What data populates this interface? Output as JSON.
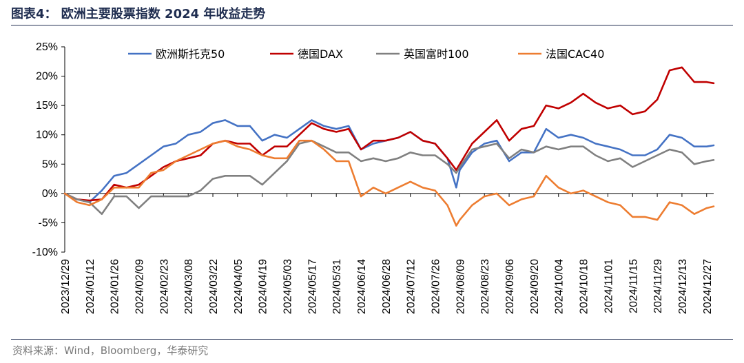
{
  "figure": {
    "title": "图表4：  欧洲主要股票指数 2024 年收益走势",
    "source": "资料来源：Wind，Bloomberg，华泰研究"
  },
  "chart_data": {
    "type": "line",
    "title": "",
    "xlabel": "",
    "ylabel": "",
    "ylim": [
      -0.1,
      0.25
    ],
    "y_ticks": [
      -0.1,
      -0.05,
      0,
      0.05,
      0.1,
      0.15,
      0.2,
      0.25
    ],
    "y_tick_labels": [
      "-10%",
      "-5%",
      "0%",
      "5%",
      "10%",
      "15%",
      "20%",
      "25%"
    ],
    "x_tick_labels": [
      "2023/12/29",
      "2024/01/12",
      "2024/01/26",
      "2024/02/09",
      "2024/02/23",
      "2024/03/08",
      "2024/03/22",
      "2024/04/05",
      "2024/04/19",
      "2024/05/03",
      "2024/05/17",
      "2024/05/31",
      "2024/06/14",
      "2024/06/28",
      "2024/07/12",
      "2024/07/26",
      "2024/08/09",
      "2024/08/23",
      "2024/09/06",
      "2024/09/20",
      "2024/10/04",
      "2024/10/18",
      "2024/11/01",
      "2024/11/15",
      "2024/11/29",
      "2024/12/13",
      "2024/12/27"
    ],
    "x_range": [
      "2023/12/29",
      "2024/12/31"
    ],
    "grid": false,
    "legend_position": "top",
    "series": [
      {
        "name": "欧洲斯托克50",
        "color": "#4472c4",
        "points": [
          [
            "2023/12/29",
            0
          ],
          [
            "2024/01/05",
            -0.01
          ],
          [
            "2024/01/12",
            -0.015
          ],
          [
            "2024/01/19",
            0.005
          ],
          [
            "2024/01/26",
            0.03
          ],
          [
            "2024/02/02",
            0.035
          ],
          [
            "2024/02/09",
            0.05
          ],
          [
            "2024/02/16",
            0.065
          ],
          [
            "2024/02/23",
            0.08
          ],
          [
            "2024/03/01",
            0.085
          ],
          [
            "2024/03/08",
            0.1
          ],
          [
            "2024/03/15",
            0.105
          ],
          [
            "2024/03/22",
            0.12
          ],
          [
            "2024/03/29",
            0.125
          ],
          [
            "2024/04/05",
            0.115
          ],
          [
            "2024/04/12",
            0.115
          ],
          [
            "2024/04/19",
            0.09
          ],
          [
            "2024/04/26",
            0.1
          ],
          [
            "2024/05/03",
            0.095
          ],
          [
            "2024/05/10",
            0.11
          ],
          [
            "2024/05/17",
            0.125
          ],
          [
            "2024/05/24",
            0.115
          ],
          [
            "2024/05/31",
            0.11
          ],
          [
            "2024/06/07",
            0.115
          ],
          [
            "2024/06/14",
            0.075
          ],
          [
            "2024/06/21",
            0.085
          ],
          [
            "2024/06/28",
            0.09
          ],
          [
            "2024/07/05",
            0.095
          ],
          [
            "2024/07/12",
            0.105
          ],
          [
            "2024/07/19",
            0.09
          ],
          [
            "2024/07/26",
            0.085
          ],
          [
            "2024/08/02",
            0.06
          ],
          [
            "2024/08/07",
            0.01
          ],
          [
            "2024/08/09",
            0.04
          ],
          [
            "2024/08/16",
            0.07
          ],
          [
            "2024/08/23",
            0.085
          ],
          [
            "2024/08/30",
            0.09
          ],
          [
            "2024/09/06",
            0.055
          ],
          [
            "2024/09/13",
            0.07
          ],
          [
            "2024/09/20",
            0.07
          ],
          [
            "2024/09/27",
            0.11
          ],
          [
            "2024/10/04",
            0.095
          ],
          [
            "2024/10/11",
            0.1
          ],
          [
            "2024/10/18",
            0.095
          ],
          [
            "2024/10/25",
            0.085
          ],
          [
            "2024/11/01",
            0.08
          ],
          [
            "2024/11/08",
            0.075
          ],
          [
            "2024/11/15",
            0.065
          ],
          [
            "2024/11/22",
            0.065
          ],
          [
            "2024/11/29",
            0.075
          ],
          [
            "2024/12/06",
            0.1
          ],
          [
            "2024/12/13",
            0.095
          ],
          [
            "2024/12/20",
            0.08
          ],
          [
            "2024/12/27",
            0.08
          ],
          [
            "2024/12/31",
            0.082
          ]
        ]
      },
      {
        "name": "德国DAX",
        "color": "#c00000",
        "points": [
          [
            "2023/12/29",
            0
          ],
          [
            "2024/01/05",
            -0.01
          ],
          [
            "2024/01/12",
            -0.012
          ],
          [
            "2024/01/19",
            -0.01
          ],
          [
            "2024/01/26",
            0.015
          ],
          [
            "2024/02/02",
            0.01
          ],
          [
            "2024/02/09",
            0.015
          ],
          [
            "2024/02/16",
            0.03
          ],
          [
            "2024/02/23",
            0.045
          ],
          [
            "2024/03/01",
            0.055
          ],
          [
            "2024/03/08",
            0.06
          ],
          [
            "2024/03/15",
            0.065
          ],
          [
            "2024/03/22",
            0.085
          ],
          [
            "2024/03/29",
            0.09
          ],
          [
            "2024/04/05",
            0.085
          ],
          [
            "2024/04/12",
            0.085
          ],
          [
            "2024/04/19",
            0.065
          ],
          [
            "2024/04/26",
            0.08
          ],
          [
            "2024/05/03",
            0.08
          ],
          [
            "2024/05/10",
            0.1
          ],
          [
            "2024/05/17",
            0.12
          ],
          [
            "2024/05/24",
            0.11
          ],
          [
            "2024/05/31",
            0.105
          ],
          [
            "2024/06/07",
            0.11
          ],
          [
            "2024/06/14",
            0.075
          ],
          [
            "2024/06/21",
            0.09
          ],
          [
            "2024/06/28",
            0.09
          ],
          [
            "2024/07/05",
            0.095
          ],
          [
            "2024/07/12",
            0.105
          ],
          [
            "2024/07/19",
            0.09
          ],
          [
            "2024/07/26",
            0.085
          ],
          [
            "2024/08/02",
            0.06
          ],
          [
            "2024/08/07",
            0.04
          ],
          [
            "2024/08/09",
            0.05
          ],
          [
            "2024/08/16",
            0.085
          ],
          [
            "2024/08/23",
            0.105
          ],
          [
            "2024/08/30",
            0.125
          ],
          [
            "2024/09/06",
            0.09
          ],
          [
            "2024/09/13",
            0.11
          ],
          [
            "2024/09/20",
            0.115
          ],
          [
            "2024/09/27",
            0.15
          ],
          [
            "2024/10/04",
            0.145
          ],
          [
            "2024/10/11",
            0.155
          ],
          [
            "2024/10/18",
            0.17
          ],
          [
            "2024/10/25",
            0.155
          ],
          [
            "2024/11/01",
            0.145
          ],
          [
            "2024/11/08",
            0.15
          ],
          [
            "2024/11/15",
            0.135
          ],
          [
            "2024/11/22",
            0.14
          ],
          [
            "2024/11/29",
            0.16
          ],
          [
            "2024/12/06",
            0.21
          ],
          [
            "2024/12/13",
            0.215
          ],
          [
            "2024/12/20",
            0.19
          ],
          [
            "2024/12/27",
            0.19
          ],
          [
            "2024/12/31",
            0.188
          ]
        ]
      },
      {
        "name": "英国富时100",
        "color": "#808080",
        "points": [
          [
            "2023/12/29",
            0
          ],
          [
            "2024/01/05",
            -0.01
          ],
          [
            "2024/01/12",
            -0.015
          ],
          [
            "2024/01/19",
            -0.035
          ],
          [
            "2024/01/26",
            -0.005
          ],
          [
            "2024/02/02",
            -0.005
          ],
          [
            "2024/02/09",
            -0.025
          ],
          [
            "2024/02/16",
            -0.005
          ],
          [
            "2024/02/23",
            -0.005
          ],
          [
            "2024/03/01",
            -0.005
          ],
          [
            "2024/03/08",
            -0.005
          ],
          [
            "2024/03/15",
            0.005
          ],
          [
            "2024/03/22",
            0.025
          ],
          [
            "2024/03/29",
            0.03
          ],
          [
            "2024/04/05",
            0.03
          ],
          [
            "2024/04/12",
            0.03
          ],
          [
            "2024/04/19",
            0.015
          ],
          [
            "2024/04/26",
            0.035
          ],
          [
            "2024/05/03",
            0.055
          ],
          [
            "2024/05/10",
            0.085
          ],
          [
            "2024/05/17",
            0.09
          ],
          [
            "2024/05/24",
            0.08
          ],
          [
            "2024/05/31",
            0.07
          ],
          [
            "2024/06/07",
            0.07
          ],
          [
            "2024/06/14",
            0.055
          ],
          [
            "2024/06/21",
            0.06
          ],
          [
            "2024/06/28",
            0.055
          ],
          [
            "2024/07/05",
            0.06
          ],
          [
            "2024/07/12",
            0.07
          ],
          [
            "2024/07/19",
            0.065
          ],
          [
            "2024/07/26",
            0.065
          ],
          [
            "2024/08/02",
            0.05
          ],
          [
            "2024/08/07",
            0.035
          ],
          [
            "2024/08/09",
            0.045
          ],
          [
            "2024/08/16",
            0.075
          ],
          [
            "2024/08/23",
            0.08
          ],
          [
            "2024/08/30",
            0.085
          ],
          [
            "2024/09/06",
            0.06
          ],
          [
            "2024/09/13",
            0.075
          ],
          [
            "2024/09/20",
            0.07
          ],
          [
            "2024/09/27",
            0.08
          ],
          [
            "2024/10/04",
            0.075
          ],
          [
            "2024/10/11",
            0.08
          ],
          [
            "2024/10/18",
            0.08
          ],
          [
            "2024/10/25",
            0.065
          ],
          [
            "2024/11/01",
            0.055
          ],
          [
            "2024/11/08",
            0.06
          ],
          [
            "2024/11/15",
            0.045
          ],
          [
            "2024/11/22",
            0.055
          ],
          [
            "2024/11/29",
            0.065
          ],
          [
            "2024/12/06",
            0.075
          ],
          [
            "2024/12/13",
            0.07
          ],
          [
            "2024/12/20",
            0.05
          ],
          [
            "2024/12/27",
            0.055
          ],
          [
            "2024/12/31",
            0.057
          ]
        ]
      },
      {
        "name": "法国CAC40",
        "color": "#ed7d31",
        "points": [
          [
            "2023/12/29",
            0
          ],
          [
            "2024/01/05",
            -0.015
          ],
          [
            "2024/01/12",
            -0.02
          ],
          [
            "2024/01/19",
            -0.01
          ],
          [
            "2024/01/26",
            0.01
          ],
          [
            "2024/02/02",
            0.01
          ],
          [
            "2024/02/09",
            0.01
          ],
          [
            "2024/02/16",
            0.035
          ],
          [
            "2024/02/23",
            0.04
          ],
          [
            "2024/03/01",
            0.055
          ],
          [
            "2024/03/08",
            0.065
          ],
          [
            "2024/03/15",
            0.075
          ],
          [
            "2024/03/22",
            0.085
          ],
          [
            "2024/03/29",
            0.09
          ],
          [
            "2024/04/05",
            0.08
          ],
          [
            "2024/04/12",
            0.075
          ],
          [
            "2024/04/19",
            0.065
          ],
          [
            "2024/04/26",
            0.06
          ],
          [
            "2024/05/03",
            0.06
          ],
          [
            "2024/05/10",
            0.09
          ],
          [
            "2024/05/17",
            0.09
          ],
          [
            "2024/05/24",
            0.075
          ],
          [
            "2024/05/31",
            0.055
          ],
          [
            "2024/06/07",
            0.055
          ],
          [
            "2024/06/14",
            -0.005
          ],
          [
            "2024/06/21",
            0.01
          ],
          [
            "2024/06/28",
            0.0
          ],
          [
            "2024/07/05",
            0.01
          ],
          [
            "2024/07/12",
            0.02
          ],
          [
            "2024/07/19",
            0.01
          ],
          [
            "2024/07/26",
            0.005
          ],
          [
            "2024/08/02",
            -0.02
          ],
          [
            "2024/08/07",
            -0.055
          ],
          [
            "2024/08/09",
            -0.045
          ],
          [
            "2024/08/16",
            -0.02
          ],
          [
            "2024/08/23",
            -0.005
          ],
          [
            "2024/08/30",
            0.0
          ],
          [
            "2024/09/06",
            -0.02
          ],
          [
            "2024/09/13",
            -0.01
          ],
          [
            "2024/09/20",
            -0.005
          ],
          [
            "2024/09/27",
            0.03
          ],
          [
            "2024/10/04",
            0.01
          ],
          [
            "2024/10/11",
            0.0
          ],
          [
            "2024/10/18",
            0.005
          ],
          [
            "2024/10/25",
            -0.005
          ],
          [
            "2024/11/01",
            -0.015
          ],
          [
            "2024/11/08",
            -0.02
          ],
          [
            "2024/11/15",
            -0.04
          ],
          [
            "2024/11/22",
            -0.04
          ],
          [
            "2024/11/29",
            -0.045
          ],
          [
            "2024/12/06",
            -0.015
          ],
          [
            "2024/12/13",
            -0.02
          ],
          [
            "2024/12/20",
            -0.035
          ],
          [
            "2024/12/27",
            -0.025
          ],
          [
            "2024/12/31",
            -0.022
          ]
        ]
      }
    ]
  }
}
